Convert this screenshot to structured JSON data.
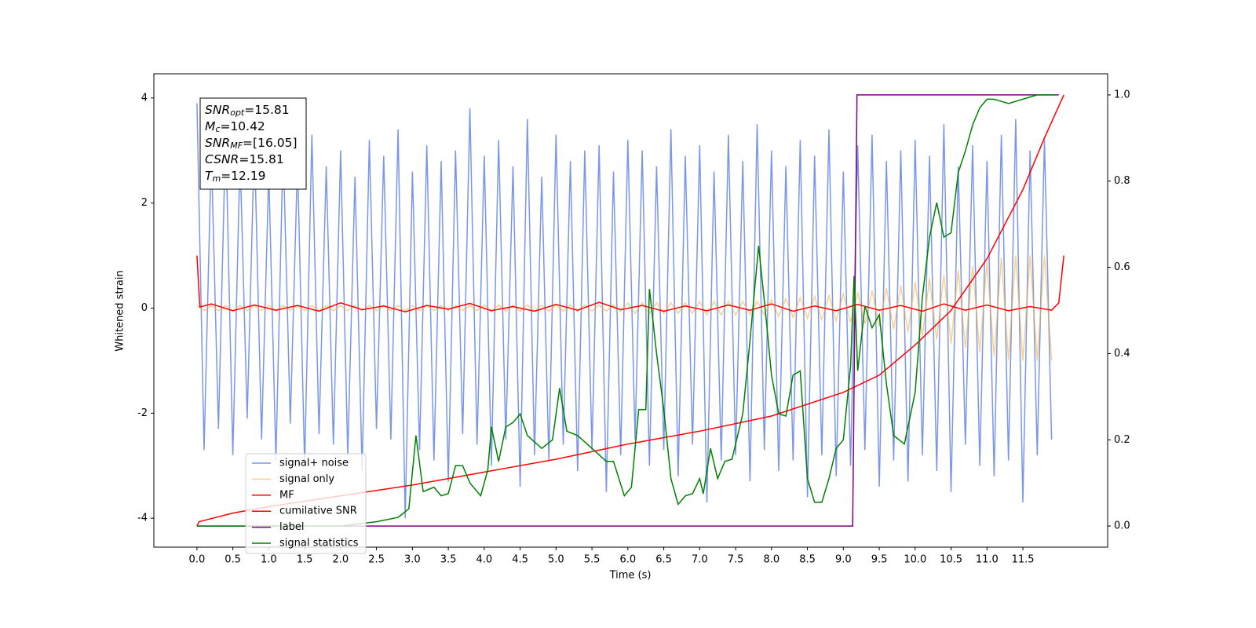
{
  "chart_data": {
    "type": "line",
    "xlabel": "Time (s)",
    "ylabel": "Whitened strain",
    "xlim": [
      -0.6,
      12.68
    ],
    "ylim": [
      -4.55,
      4.46
    ],
    "y2lim": [
      -0.049,
      1.049
    ],
    "xticks": [
      {
        "value": 0,
        "label": "0.0"
      },
      {
        "value": 0.5,
        "label": "0.5"
      },
      {
        "value": 1,
        "label": "1.0"
      },
      {
        "value": 1.5,
        "label": "1.5"
      },
      {
        "value": 2,
        "label": "2.0"
      },
      {
        "value": 2.5,
        "label": "2.5"
      },
      {
        "value": 3,
        "label": "3.0"
      },
      {
        "value": 3.5,
        "label": "3.5"
      },
      {
        "value": 4,
        "label": "4.0"
      },
      {
        "value": 4.5,
        "label": "4.5"
      },
      {
        "value": 5,
        "label": "5.0"
      },
      {
        "value": 5.5,
        "label": "5.5"
      },
      {
        "value": 6,
        "label": "6.0"
      },
      {
        "value": 6.5,
        "label": "6.5"
      },
      {
        "value": 7,
        "label": "7.0"
      },
      {
        "value": 7.5,
        "label": "7.5"
      },
      {
        "value": 8,
        "label": "8.0"
      },
      {
        "value": 8.5,
        "label": "8.5"
      },
      {
        "value": 9,
        "label": "9.0"
      },
      {
        "value": 9.5,
        "label": "9.5"
      },
      {
        "value": 10,
        "label": "10.0"
      },
      {
        "value": 10.5,
        "label": "10.5"
      },
      {
        "value": 11,
        "label": "11.0"
      },
      {
        "value": 11.5,
        "label": "11.5"
      }
    ],
    "yticks": [
      -4,
      -2,
      0,
      2,
      4
    ],
    "y2ticks": [
      {
        "value": 0,
        "label": "0.0"
      },
      {
        "value": 0.2,
        "label": "0.2"
      },
      {
        "value": 0.4,
        "label": "0.4"
      },
      {
        "value": 0.6,
        "label": "0.6"
      },
      {
        "value": 0.8,
        "label": "0.8"
      },
      {
        "value": 1,
        "label": "1.0"
      }
    ],
    "legend": "lower left",
    "annotations": [
      {
        "symbol": "SNR",
        "sub": "opt",
        "text": "=15.81"
      },
      {
        "symbol": "M",
        "sub": "c",
        "text": "=10.42"
      },
      {
        "symbol": "SNR",
        "sub": "MF",
        "text": "=[16.05]"
      },
      {
        "symbol": "CSNR",
        "text": "=15.81"
      },
      {
        "symbol": "T",
        "sub": "m",
        "text": "=12.19"
      }
    ],
    "x": [
      0,
      0.1,
      0.2,
      0.3,
      0.4,
      0.5,
      0.6,
      0.7,
      0.8,
      0.9,
      1,
      1.1,
      1.2,
      1.3,
      1.4,
      1.5,
      1.6,
      1.7,
      1.8,
      1.9,
      2,
      2.1,
      2.2,
      2.3,
      2.4,
      2.5,
      2.6,
      2.7,
      2.8,
      2.9,
      3,
      3.1,
      3.2,
      3.3,
      3.4,
      3.5,
      3.6,
      3.7,
      3.8,
      3.9,
      4,
      4.1,
      4.2,
      4.3,
      4.4,
      4.5,
      4.6,
      4.7,
      4.8,
      4.9,
      5,
      5.1,
      5.2,
      5.3,
      5.4,
      5.5,
      5.6,
      5.7,
      5.8,
      5.9,
      6,
      6.1,
      6.2,
      6.3,
      6.4,
      6.5,
      6.6,
      6.7,
      6.8,
      6.9,
      7,
      7.1,
      7.2,
      7.3,
      7.4,
      7.5,
      7.6,
      7.7,
      7.8,
      7.9,
      8,
      8.1,
      8.2,
      8.3,
      8.4,
      8.5,
      8.6,
      8.7,
      8.8,
      8.9,
      9,
      9.1,
      9.2,
      9.3,
      9.4,
      9.5,
      9.6,
      9.7,
      9.8,
      9.9,
      10,
      10.1,
      10.2,
      10.3,
      10.4,
      10.5,
      10.6,
      10.7,
      10.8,
      10.9,
      11,
      11.1,
      11.2,
      11.3,
      11.4,
      11.5,
      11.6,
      11.7,
      11.8,
      11.9
    ],
    "series": [
      {
        "name": "signal+ noise",
        "color": "#4169e1",
        "alpha": 0.7,
        "values": [
          3.9,
          -2.7,
          3.0,
          -2.3,
          3.4,
          -2.8,
          2.9,
          -2.1,
          3.2,
          -2.5,
          2.6,
          -2.9,
          3.1,
          -2.2,
          2.8,
          -3.0,
          3.3,
          -2.4,
          2.7,
          -2.6,
          3.0,
          -2.8,
          2.5,
          -3.1,
          3.2,
          -2.3,
          2.9,
          -2.5,
          3.4,
          -4.0,
          2.6,
          -2.7,
          3.1,
          -2.9,
          2.8,
          -3.3,
          3.0,
          -2.4,
          3.8,
          -2.6,
          2.9,
          -3.0,
          3.2,
          -2.5,
          2.7,
          -3.4,
          3.6,
          -2.8,
          2.5,
          -2.9,
          3.3,
          -2.6,
          2.8,
          -3.1,
          3.0,
          -2.7,
          3.1,
          -3.5,
          2.6,
          -2.8,
          3.2,
          -2.5,
          3.0,
          -3.0,
          2.7,
          -2.7,
          3.4,
          -3.2,
          2.9,
          -2.6,
          3.1,
          -3.7,
          2.6,
          -2.9,
          3.3,
          -2.8,
          2.8,
          -3.3,
          3.5,
          -2.7,
          3.0,
          -3.1,
          2.7,
          -2.9,
          3.2,
          -3.6,
          2.9,
          -2.8,
          3.4,
          -3.2,
          2.6,
          -3.0,
          3.1,
          -2.7,
          3.3,
          -3.4,
          2.8,
          -2.9,
          3.0,
          -3.3,
          3.2,
          -2.8,
          2.9,
          -3.1,
          3.5,
          -3.5,
          2.7,
          -2.6,
          3.1,
          -3.0,
          2.8,
          -3.2,
          3.3,
          -2.9,
          3.6,
          -3.7,
          3.0,
          -2.8,
          3.2,
          -2.5
        ]
      },
      {
        "name": "signal only",
        "color": "#f5b041",
        "alpha": 0.6,
        "values": [
          0.05,
          -0.05,
          0.05,
          -0.05,
          0.05,
          -0.05,
          0.05,
          -0.05,
          0.05,
          -0.05,
          0.05,
          -0.05,
          0.05,
          -0.05,
          0.05,
          -0.05,
          0.05,
          -0.05,
          0.05,
          -0.05,
          0.05,
          -0.05,
          0.05,
          -0.05,
          0.05,
          -0.05,
          0.05,
          -0.05,
          0.05,
          -0.05,
          0.05,
          -0.05,
          0.05,
          -0.05,
          0.05,
          -0.05,
          0.05,
          -0.05,
          0.05,
          -0.05,
          0.06,
          -0.06,
          0.06,
          -0.06,
          0.06,
          -0.06,
          0.06,
          -0.06,
          0.06,
          -0.06,
          0.06,
          -0.06,
          0.06,
          -0.06,
          0.06,
          -0.06,
          0.06,
          -0.06,
          0.06,
          -0.06,
          0.1,
          -0.1,
          0.1,
          -0.1,
          0.1,
          -0.1,
          0.1,
          -0.1,
          0.1,
          -0.1,
          0.13,
          -0.13,
          0.13,
          -0.13,
          0.13,
          -0.13,
          0.13,
          -0.13,
          0.13,
          -0.13,
          0.16,
          -0.16,
          0.18,
          -0.18,
          0.2,
          -0.2,
          0.22,
          -0.22,
          0.24,
          -0.24,
          0.27,
          -0.27,
          0.3,
          -0.3,
          0.33,
          -0.35,
          0.38,
          -0.4,
          0.43,
          -0.46,
          0.5,
          -0.53,
          0.57,
          -0.6,
          0.64,
          -0.68,
          0.72,
          -0.76,
          0.8,
          -0.84,
          0.88,
          -0.92,
          0.96,
          -0.98,
          1.0,
          -1.0,
          1.0,
          -1.0,
          1.0,
          -1.0
        ]
      },
      {
        "name": "MF",
        "color": "#ff0000",
        "x": [
          0,
          0.04,
          0.2,
          0.5,
          0.8,
          1.1,
          1.4,
          1.7,
          2.0,
          2.3,
          2.6,
          2.9,
          3.2,
          3.5,
          3.8,
          4.1,
          4.4,
          4.7,
          5.0,
          5.3,
          5.6,
          5.9,
          6.2,
          6.5,
          6.8,
          7.1,
          7.4,
          7.7,
          8.0,
          8.3,
          8.6,
          8.9,
          9.2,
          9.5,
          9.8,
          10.1,
          10.4,
          10.7,
          11.0,
          11.3,
          11.6,
          11.9,
          12.0,
          12.07
        ],
        "values": [
          1.0,
          0.02,
          0.08,
          -0.05,
          0.06,
          -0.04,
          0.05,
          -0.06,
          0.1,
          -0.03,
          0.04,
          -0.07,
          0.05,
          -0.02,
          0.09,
          -0.05,
          0.03,
          -0.06,
          0.07,
          -0.04,
          0.11,
          -0.03,
          0.05,
          -0.06,
          0.04,
          -0.05,
          0.06,
          -0.04,
          0.08,
          -0.06,
          0.04,
          -0.05,
          0.07,
          -0.04,
          0.05,
          -0.06,
          0.08,
          -0.04,
          0.06,
          -0.05,
          0.03,
          -0.04,
          0.1,
          1.0
        ]
      },
      {
        "name": "cumilative SNR",
        "color": "#ff0000",
        "axis": "y2",
        "x": [
          0,
          0.03,
          0.5,
          1,
          2,
          3,
          4,
          5,
          6,
          7,
          8,
          9,
          9.5,
          10,
          10.5,
          11,
          11.5,
          11.8,
          12.07
        ],
        "values": [
          0,
          0.01,
          0.03,
          0.045,
          0.07,
          0.095,
          0.125,
          0.155,
          0.19,
          0.22,
          0.255,
          0.31,
          0.35,
          0.42,
          0.5,
          0.62,
          0.78,
          0.9,
          1.0
        ]
      },
      {
        "name": "label",
        "color": "#800080",
        "axis": "y2",
        "x": [
          0,
          9.13,
          9.19,
          12.0
        ],
        "values": [
          0,
          0,
          1,
          1
        ]
      },
      {
        "name": "signal statistics",
        "color": "#008000",
        "axis": "y2",
        "x": [
          0,
          0.5,
          1,
          2,
          2.5,
          2.8,
          2.95,
          3.05,
          3.15,
          3.3,
          3.4,
          3.5,
          3.6,
          3.7,
          3.8,
          3.95,
          4.05,
          4.1,
          4.2,
          4.3,
          4.4,
          4.5,
          4.6,
          4.8,
          4.95,
          5.05,
          5.15,
          5.3,
          5.5,
          5.7,
          5.8,
          5.95,
          6.05,
          6.15,
          6.25,
          6.3,
          6.4,
          6.5,
          6.6,
          6.7,
          6.8,
          6.9,
          7.0,
          7.05,
          7.15,
          7.25,
          7.35,
          7.45,
          7.6,
          7.7,
          7.82,
          7.92,
          8.0,
          8.1,
          8.2,
          8.3,
          8.4,
          8.5,
          8.6,
          8.7,
          8.8,
          8.9,
          9.0,
          9.1,
          9.15,
          9.2,
          9.3,
          9.4,
          9.5,
          9.6,
          9.7,
          9.85,
          10.0,
          10.1,
          10.2,
          10.3,
          10.4,
          10.5,
          10.6,
          10.7,
          10.8,
          10.9,
          11.0,
          11.1,
          11.3,
          11.5,
          11.7,
          11.95
        ],
        "values": [
          0,
          0,
          0,
          0,
          0.01,
          0.02,
          0.04,
          0.21,
          0.08,
          0.09,
          0.07,
          0.075,
          0.14,
          0.14,
          0.1,
          0.07,
          0.13,
          0.23,
          0.15,
          0.23,
          0.24,
          0.26,
          0.21,
          0.18,
          0.2,
          0.32,
          0.22,
          0.21,
          0.18,
          0.15,
          0.15,
          0.07,
          0.09,
          0.27,
          0.27,
          0.55,
          0.4,
          0.27,
          0.11,
          0.05,
          0.07,
          0.075,
          0.11,
          0.075,
          0.18,
          0.11,
          0.15,
          0.155,
          0.26,
          0.43,
          0.65,
          0.49,
          0.35,
          0.26,
          0.255,
          0.35,
          0.36,
          0.11,
          0.055,
          0.055,
          0.11,
          0.18,
          0.2,
          0.37,
          0.58,
          0.36,
          0.51,
          0.46,
          0.49,
          0.33,
          0.21,
          0.19,
          0.31,
          0.53,
          0.67,
          0.75,
          0.67,
          0.68,
          0.82,
          0.87,
          0.93,
          0.97,
          0.99,
          0.99,
          0.98,
          0.99,
          1.0,
          1.0
        ]
      }
    ]
  }
}
